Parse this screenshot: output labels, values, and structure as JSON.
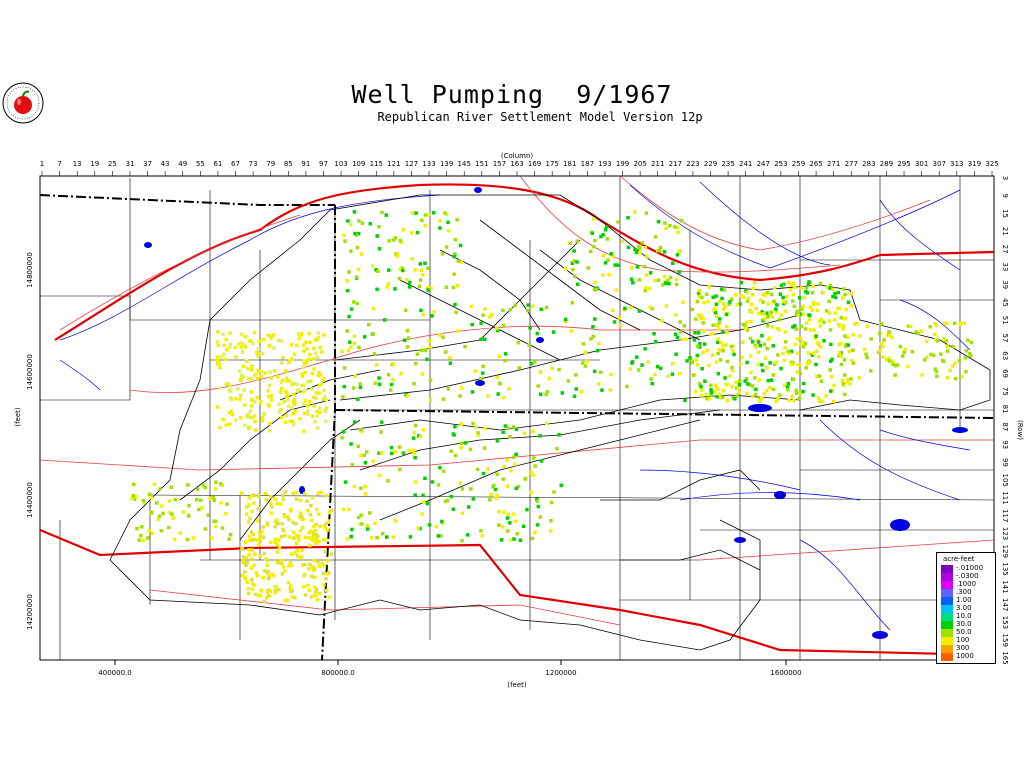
{
  "title": "Well Pumping  9/1967",
  "subtitle": "Republican River Settlement Model Version 12p",
  "axes": {
    "column_label": "(Column)",
    "row_label": "(Row)",
    "x_label": "(feet)",
    "y_label": "(feet)",
    "column_ticks": [
      "1",
      "7",
      "13",
      "19",
      "25",
      "31",
      "37",
      "43",
      "49",
      "55",
      "61",
      "67",
      "73",
      "79",
      "85",
      "91",
      "97",
      "103",
      "109",
      "115",
      "121",
      "127",
      "133",
      "139",
      "145",
      "151",
      "157",
      "163",
      "169",
      "175",
      "181",
      "187",
      "193",
      "199",
      "205",
      "211",
      "217",
      "223",
      "229",
      "235",
      "241",
      "247",
      "253",
      "259",
      "265",
      "271",
      "277",
      "283",
      "289",
      "295",
      "301",
      "307",
      "313",
      "319",
      "325"
    ],
    "row_ticks": [
      "3",
      "9",
      "15",
      "21",
      "27",
      "33",
      "39",
      "45",
      "51",
      "57",
      "63",
      "69",
      "75",
      "81",
      "87",
      "93",
      "99",
      "105",
      "111",
      "117",
      "123",
      "129",
      "135",
      "141",
      "147",
      "153",
      "159",
      "165"
    ],
    "x_ticks": [
      "400000.0",
      "800000.0",
      "1200000",
      "1600000"
    ],
    "y_ticks": [
      "14800000",
      "14600000",
      "14400000",
      "14200000"
    ]
  },
  "legend": {
    "title": "acre-feet",
    "items": [
      {
        "label": "-.01000",
        "color": "#8000c0"
      },
      {
        "label": "-.0300",
        "color": "#b000e0"
      },
      {
        "label": ".1000",
        "color": "#e000ff"
      },
      {
        "label": ".300",
        "color": "#6060ff"
      },
      {
        "label": "1.00",
        "color": "#0060ff"
      },
      {
        "label": "3.00",
        "color": "#00c0ff"
      },
      {
        "label": "10.0",
        "color": "#00e080"
      },
      {
        "label": "30.0",
        "color": "#00d000"
      },
      {
        "label": "50.0",
        "color": "#a0e000"
      },
      {
        "label": "100",
        "color": "#f0f000"
      },
      {
        "label": "300",
        "color": "#ffa000"
      },
      {
        "label": "1000",
        "color": "#ff6000"
      }
    ]
  },
  "colors": {
    "highway": "#e00000",
    "road": "#d04040",
    "stream": "#0000e0",
    "boundary": "#000000"
  }
}
